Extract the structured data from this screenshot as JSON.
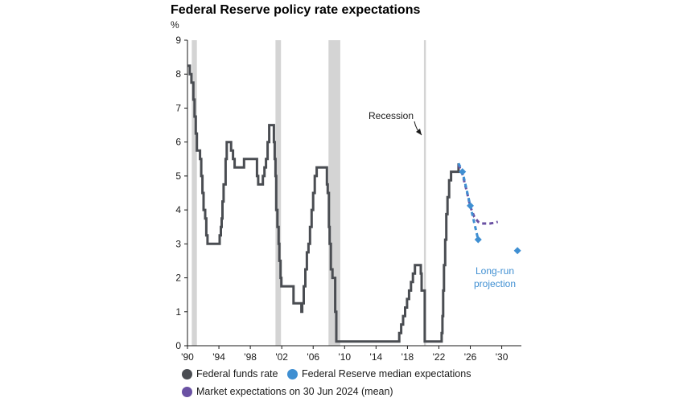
{
  "chart_data": {
    "type": "line",
    "title": "Federal Reserve policy rate expectations",
    "ylabel": "%",
    "ylim": [
      0,
      9
    ],
    "xlim": [
      1990,
      2032.5
    ],
    "y_ticks": [
      "0",
      "1",
      "2",
      "3",
      "4",
      "5",
      "6",
      "7",
      "8",
      "9"
    ],
    "x_ticks": [
      {
        "value": 1990,
        "label": "'90"
      },
      {
        "value": 1994,
        "label": "'94"
      },
      {
        "value": 1998,
        "label": "'98"
      },
      {
        "value": 2002,
        "label": "'02"
      },
      {
        "value": 2006,
        "label": "'06"
      },
      {
        "value": 2010,
        "label": "'10"
      },
      {
        "value": 2014,
        "label": "'14"
      },
      {
        "value": 2018,
        "label": "'18"
      },
      {
        "value": 2022,
        "label": "'22"
      },
      {
        "value": 2026,
        "label": "'26"
      },
      {
        "value": 2030,
        "label": "'30"
      }
    ],
    "recessions": [
      [
        1990.55,
        1991.2
      ],
      [
        2001.2,
        2001.9
      ],
      [
        2007.95,
        2009.45
      ],
      [
        2020.1,
        2020.35
      ]
    ],
    "annotations": {
      "recession_label": "Recession",
      "long_run_label_1": "Long-run",
      "long_run_label_2": "projection"
    },
    "colors": {
      "funds": "#4a4d52",
      "fed": "#3f8fd2",
      "market": "#6a51a3",
      "recession": "#d4d4d4",
      "longrun_text": "#3f8fd2"
    },
    "series": [
      {
        "name": "Federal funds rate",
        "style": "step-line",
        "x": [
          1990.0,
          1990.3,
          1990.5,
          1990.75,
          1990.9,
          1991.05,
          1991.2,
          1991.35,
          1991.6,
          1991.75,
          1991.9,
          1992.05,
          1992.25,
          1992.4,
          1992.55,
          1992.75,
          1994.0,
          1994.1,
          1994.25,
          1994.35,
          1994.45,
          1994.6,
          1994.85,
          1995.0,
          1995.4,
          1995.55,
          1995.8,
          1996.0,
          1997.2,
          1998.7,
          1998.85,
          1999.0,
          1999.4,
          1999.6,
          1999.8,
          2000.0,
          2000.2,
          2000.4,
          2000.9,
          2001.0,
          2001.1,
          2001.2,
          2001.3,
          2001.45,
          2001.6,
          2001.7,
          2001.85,
          2001.95,
          2002.9,
          2003.5,
          2004.5,
          2004.6,
          2004.8,
          2005.0,
          2005.2,
          2005.4,
          2005.6,
          2005.8,
          2006.0,
          2006.2,
          2006.45,
          2007.65,
          2007.75,
          2007.85,
          2008.0,
          2008.1,
          2008.25,
          2008.45,
          2008.8,
          2008.95,
          2015.95,
          2016.95,
          2017.2,
          2017.45,
          2017.7,
          2017.95,
          2018.2,
          2018.45,
          2018.7,
          2018.95,
          2019.55,
          2019.7,
          2019.8,
          2020.2,
          2022.2,
          2022.35,
          2022.45,
          2022.55,
          2022.65,
          2022.8,
          2022.95,
          2023.1,
          2023.3,
          2023.55,
          2024.5
        ],
        "values": [
          8.25,
          8.0,
          7.75,
          7.25,
          6.75,
          6.25,
          5.75,
          5.75,
          5.5,
          5.0,
          4.5,
          4.0,
          3.75,
          3.25,
          3.0,
          3.0,
          3.0,
          3.25,
          3.5,
          3.75,
          4.25,
          4.75,
          5.5,
          6.0,
          6.0,
          5.75,
          5.5,
          5.25,
          5.5,
          5.5,
          5.0,
          4.75,
          4.75,
          5.0,
          5.25,
          5.5,
          6.0,
          6.5,
          6.5,
          6.0,
          5.5,
          5.0,
          4.0,
          3.5,
          3.0,
          2.5,
          2.0,
          1.75,
          1.75,
          1.25,
          1.0,
          1.25,
          1.75,
          2.25,
          2.75,
          3.0,
          3.5,
          4.0,
          4.5,
          5.0,
          5.25,
          5.25,
          4.75,
          4.5,
          3.5,
          3.0,
          2.25,
          2.0,
          1.0,
          0.125,
          0.125,
          0.375,
          0.625,
          0.875,
          1.125,
          1.375,
          1.625,
          1.875,
          2.125,
          2.375,
          2.375,
          2.125,
          1.625,
          0.125,
          0.125,
          0.375,
          0.875,
          1.625,
          2.375,
          3.125,
          3.875,
          4.375,
          4.875,
          5.125,
          5.375
        ]
      },
      {
        "name": "Federal Reserve median expectations",
        "style": "dashed-markers",
        "x": [
          2024.5,
          2025.0,
          2026.0,
          2027.0
        ],
        "values": [
          5.375,
          5.125,
          4.125,
          3.125
        ],
        "long_run": {
          "x": 2032.0,
          "value": 2.8
        }
      },
      {
        "name": "Market expectations on 30 Jun 2024 (mean)",
        "style": "dashed",
        "x": [
          2024.5,
          2025.0,
          2025.5,
          2026.0,
          2026.5,
          2027.0,
          2027.5,
          2028.0,
          2028.5,
          2029.0,
          2029.5
        ],
        "values": [
          5.33,
          5.05,
          4.6,
          4.1,
          3.8,
          3.65,
          3.6,
          3.6,
          3.6,
          3.62,
          3.65
        ]
      }
    ]
  }
}
